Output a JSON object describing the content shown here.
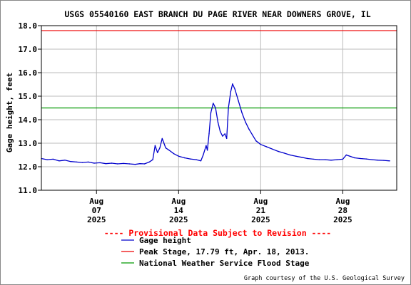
{
  "chart_data": {
    "type": "line",
    "title": "USGS 05540160 EAST BRANCH DU PAGE RIVER NEAR DOWNERS GROVE, IL",
    "ylabel": "Gage height, feet",
    "xlabel": "",
    "ylim": [
      11.0,
      18.0
    ],
    "y_ticks": [
      "11.0",
      "12.0",
      "13.0",
      "14.0",
      "15.0",
      "16.0",
      "17.0",
      "18.0"
    ],
    "xlim": [
      2.3,
      32.6
    ],
    "x_unit": "day of August 2025",
    "x_ticks": [
      {
        "day": 7,
        "month": "Aug",
        "date": "07",
        "year": "2025"
      },
      {
        "day": 14,
        "month": "Aug",
        "date": "14",
        "year": "2025"
      },
      {
        "day": 21,
        "month": "Aug",
        "date": "21",
        "year": "2025"
      },
      {
        "day": 28,
        "month": "Aug",
        "date": "28",
        "year": "2025"
      }
    ],
    "grid": true,
    "series": [
      {
        "name": "Gage height",
        "color": "#0000cc",
        "points": [
          [
            2.3,
            12.35
          ],
          [
            2.8,
            12.3
          ],
          [
            3.3,
            12.32
          ],
          [
            3.8,
            12.25
          ],
          [
            4.3,
            12.28
          ],
          [
            4.8,
            12.22
          ],
          [
            5.3,
            12.2
          ],
          [
            5.8,
            12.18
          ],
          [
            6.3,
            12.2
          ],
          [
            6.8,
            12.15
          ],
          [
            7.3,
            12.17
          ],
          [
            7.8,
            12.13
          ],
          [
            8.3,
            12.15
          ],
          [
            8.8,
            12.12
          ],
          [
            9.3,
            12.14
          ],
          [
            9.8,
            12.12
          ],
          [
            10.3,
            12.1
          ],
          [
            10.7,
            12.13
          ],
          [
            11.1,
            12.12
          ],
          [
            11.5,
            12.2
          ],
          [
            11.8,
            12.3
          ],
          [
            12.0,
            12.9
          ],
          [
            12.2,
            12.6
          ],
          [
            12.4,
            12.8
          ],
          [
            12.6,
            13.2
          ],
          [
            12.75,
            13.0
          ],
          [
            12.9,
            12.8
          ],
          [
            13.2,
            12.7
          ],
          [
            13.6,
            12.55
          ],
          [
            14.0,
            12.45
          ],
          [
            14.5,
            12.38
          ],
          [
            15.0,
            12.33
          ],
          [
            15.5,
            12.3
          ],
          [
            15.9,
            12.25
          ],
          [
            16.1,
            12.5
          ],
          [
            16.35,
            12.9
          ],
          [
            16.45,
            12.7
          ],
          [
            16.6,
            13.4
          ],
          [
            16.75,
            14.3
          ],
          [
            16.95,
            14.7
          ],
          [
            17.15,
            14.5
          ],
          [
            17.35,
            13.9
          ],
          [
            17.55,
            13.5
          ],
          [
            17.75,
            13.3
          ],
          [
            17.95,
            13.4
          ],
          [
            18.1,
            13.2
          ],
          [
            18.25,
            14.5
          ],
          [
            18.45,
            15.2
          ],
          [
            18.6,
            15.52
          ],
          [
            18.8,
            15.3
          ],
          [
            19.1,
            14.8
          ],
          [
            19.4,
            14.3
          ],
          [
            19.7,
            13.9
          ],
          [
            20.0,
            13.6
          ],
          [
            20.3,
            13.35
          ],
          [
            20.6,
            13.1
          ],
          [
            21.0,
            12.95
          ],
          [
            21.5,
            12.85
          ],
          [
            22.0,
            12.75
          ],
          [
            22.5,
            12.65
          ],
          [
            23.0,
            12.58
          ],
          [
            23.5,
            12.5
          ],
          [
            24.0,
            12.45
          ],
          [
            24.5,
            12.4
          ],
          [
            25.0,
            12.35
          ],
          [
            25.5,
            12.32
          ],
          [
            26.0,
            12.3
          ],
          [
            26.5,
            12.3
          ],
          [
            27.0,
            12.28
          ],
          [
            27.5,
            12.3
          ],
          [
            28.0,
            12.32
          ],
          [
            28.3,
            12.5
          ],
          [
            28.6,
            12.45
          ],
          [
            29.0,
            12.38
          ],
          [
            29.5,
            12.35
          ],
          [
            30.0,
            12.33
          ],
          [
            30.5,
            12.3
          ],
          [
            31.0,
            12.28
          ],
          [
            31.5,
            12.27
          ],
          [
            32.0,
            12.25
          ]
        ]
      }
    ],
    "reference_lines": [
      {
        "name": "Peak Stage, 17.79 ft, Apr. 18, 2013.",
        "value": 17.79,
        "color": "#ee0000"
      },
      {
        "name": "National Weather Service Flood Stage",
        "value": 14.5,
        "color": "#009900"
      }
    ],
    "revision_note": "---- Provisional Data Subject to Revision ----",
    "legend": [
      {
        "label": "Gage height",
        "color": "#0000cc"
      },
      {
        "label": "Peak Stage, 17.79 ft, Apr. 18, 2013.",
        "color": "#ee0000"
      },
      {
        "label": "National Weather Service Flood Stage",
        "color": "#009900"
      }
    ],
    "legend_placement": "bottom-center",
    "credit": "Graph courtesy of the U.S. Geological Survey"
  }
}
